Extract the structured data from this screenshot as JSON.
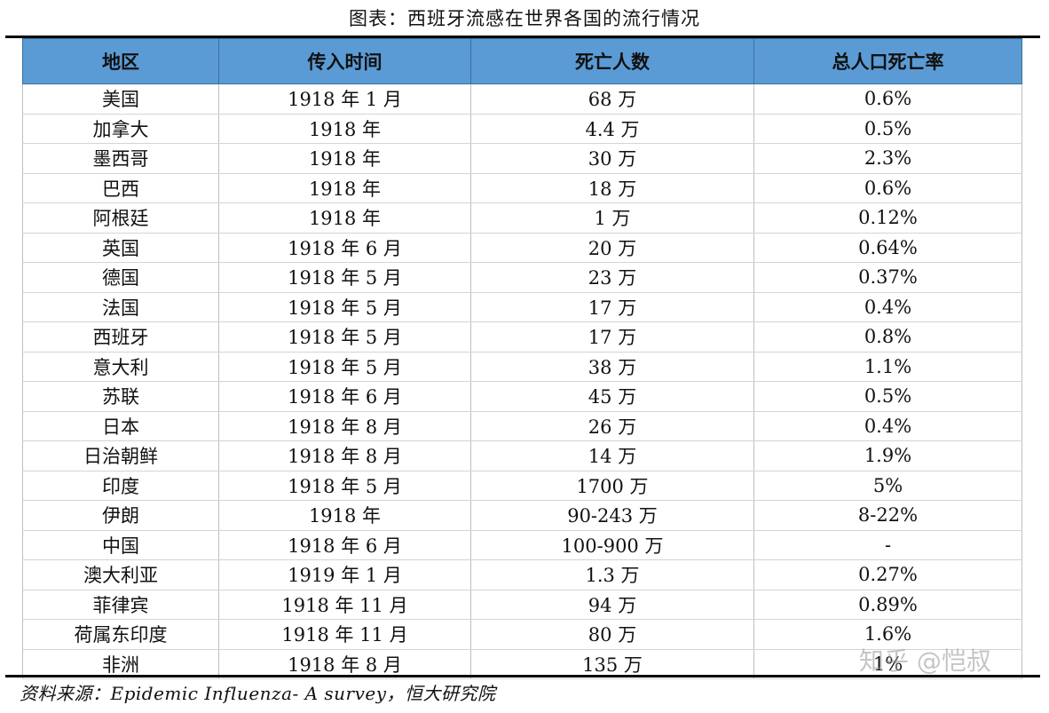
{
  "title": "图表：西班牙流感在世界各国的流行情况",
  "columns": [
    "地区",
    "传入时间",
    "死亡人数",
    "总人口死亡率"
  ],
  "rows": [
    [
      "美国",
      "1918 年 1 月",
      "68 万",
      "0.6%"
    ],
    [
      "加拿大",
      "1918 年",
      "4.4 万",
      "0.5%"
    ],
    [
      "墨西哥",
      "1918 年",
      "30 万",
      "2.3%"
    ],
    [
      "巴西",
      "1918 年",
      "18 万",
      "0.6%"
    ],
    [
      "阿根廷",
      "1918 年",
      "1 万",
      "0.12%"
    ],
    [
      "英国",
      "1918 年 6 月",
      "20 万",
      "0.64%"
    ],
    [
      "德国",
      "1918 年 5 月",
      "23 万",
      "0.37%"
    ],
    [
      "法国",
      "1918 年 5 月",
      "17 万",
      "0.4%"
    ],
    [
      "西班牙",
      "1918 年 5 月",
      "17 万",
      "0.8%"
    ],
    [
      "意大利",
      "1918 年 5 月",
      "38 万",
      "1.1%"
    ],
    [
      "苏联",
      "1918 年 6 月",
      "45 万",
      "0.5%"
    ],
    [
      "日本",
      "1918 年 8 月",
      "26 万",
      "0.4%"
    ],
    [
      "日治朝鲜",
      "1918 年 8 月",
      "14 万",
      "1.9%"
    ],
    [
      "印度",
      "1918 年 5 月",
      "1700 万",
      "5%"
    ],
    [
      "伊朗",
      "1918 年",
      "90-243 万",
      "8-22%"
    ],
    [
      "中国",
      "1918 年 6 月",
      "100-900 万",
      "-"
    ],
    [
      "澳大利亚",
      "1919 年 1 月",
      "1.3 万",
      "0.27%"
    ],
    [
      "菲律宾",
      "1918 年 11 月",
      "94 万",
      "0.89%"
    ],
    [
      "荷属东印度",
      "1918 年 11 月",
      "80 万",
      "1.6%"
    ],
    [
      "非洲",
      "1918 年 8 月",
      "135 万",
      "1%"
    ]
  ],
  "source": "资料来源：Epidemic Influenza- A survey，恒大研究院",
  "watermark": "知乎 @恺叔",
  "colors": {
    "header_bg": "#5b9bd5",
    "rule": "#000000"
  }
}
